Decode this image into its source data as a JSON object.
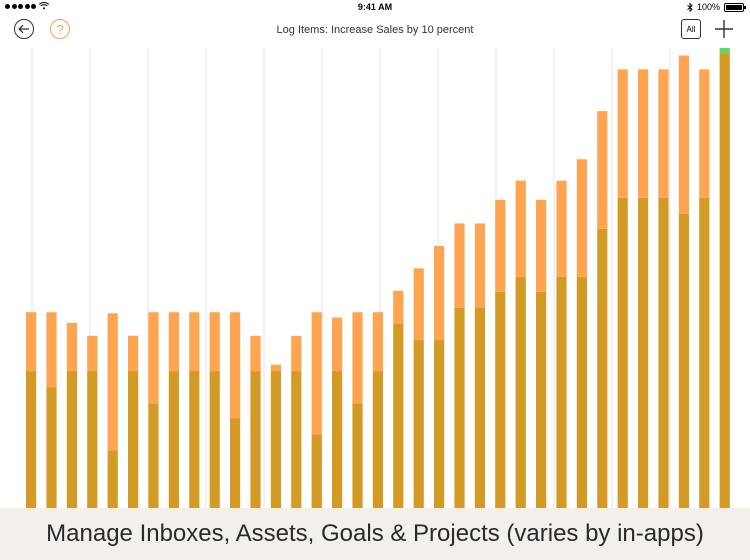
{
  "status_bar": {
    "time": "9:41 AM",
    "battery": "100%"
  },
  "nav": {
    "title": "Log Items: Increase Sales by 10 percent",
    "help_label": "?",
    "all_label": "All"
  },
  "caption": "Manage Inboxes, Assets, Goals & Projects (varies by in-apps)",
  "colors": {
    "lower": "#d39b25",
    "upper": "#ffa552",
    "highlight": "#5fd85f",
    "grid": "#e6e6e6"
  },
  "chart_data": {
    "type": "bar",
    "stacked": true,
    "ylim": [
      0,
      430
    ],
    "grid": "vertical",
    "series": [
      {
        "values": [
          128,
          113,
          128,
          128,
          54,
          128,
          98,
          128,
          128,
          128,
          84,
          128,
          128,
          128,
          69,
          128,
          98,
          128,
          172,
          157,
          157,
          187,
          187,
          202,
          216,
          202,
          216,
          216,
          261,
          290,
          290,
          290,
          275,
          290,
          425
        ]
      },
      {
        "values": [
          55,
          70,
          45,
          33,
          128,
          33,
          85,
          55,
          55,
          55,
          99,
          33,
          6,
          33,
          114,
          50,
          85,
          55,
          31,
          67,
          88,
          79,
          79,
          86,
          90,
          86,
          90,
          110,
          110,
          120,
          120,
          120,
          148,
          120,
          0
        ]
      },
      {
        "values": [
          0,
          0,
          0,
          0,
          0,
          0,
          0,
          0,
          0,
          0,
          0,
          0,
          0,
          0,
          0,
          0,
          0,
          0,
          0,
          0,
          0,
          0,
          0,
          0,
          0,
          0,
          0,
          0,
          0,
          0,
          0,
          0,
          0,
          0,
          10
        ]
      }
    ]
  }
}
